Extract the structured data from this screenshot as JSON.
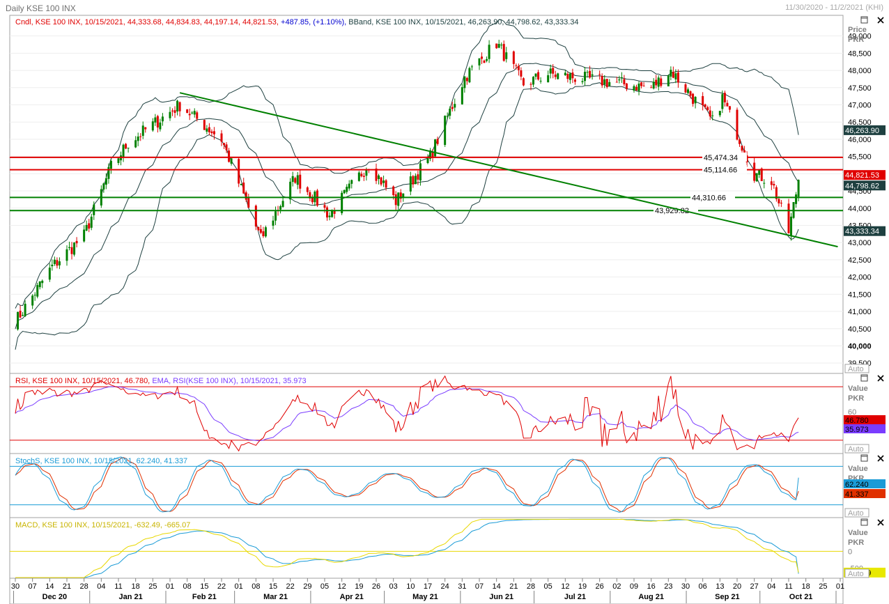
{
  "header": {
    "title": "Daily KSE 100 INX",
    "date_range": "11/30/2020 - 11/2/2021 (KHI)"
  },
  "chart_data": [
    {
      "type": "candlestick",
      "panel": "price",
      "legend_candle": "Cndl, KSE 100 INX, 10/15/2021, 44,333.68, 44,834.83, 44,197.14, 44,821.53,",
      "legend_change": "+487.85, (+1.10%),",
      "legend_bband": "BBand, KSE 100 INX, 10/15/2021, 46,263.90, 44,798.62, 43,333.34",
      "axis_title": [
        "Price",
        "PKR"
      ],
      "auto_label": "Auto",
      "ylim": [
        39200,
        49600
      ],
      "yticks": [
        "49,000",
        "48,500",
        "48,000",
        "47,500",
        "47,000",
        "46,500",
        "46,000",
        "45,500",
        "45,000",
        "44,500",
        "44,000",
        "43,500",
        "43,000",
        "42,500",
        "42,000",
        "41,500",
        "41,000",
        "40,500",
        "40,000",
        "39,500"
      ],
      "yvalues": [
        49000,
        48500,
        48000,
        47500,
        47000,
        46500,
        46000,
        45500,
        45000,
        44500,
        44000,
        43500,
        43000,
        42500,
        42000,
        41500,
        41000,
        40500,
        40000,
        39500
      ],
      "bold_ticks": [
        "45,000",
        "40,000"
      ],
      "last_candle": {
        "open": 44333.68,
        "high": 44834.83,
        "low": 44197.14,
        "close": 44821.53
      },
      "value_tags": [
        {
          "label": "46,263.90",
          "value": 46263.9,
          "bg": "#1e4040",
          "fg": "#ffffff"
        },
        {
          "label": "44,821.53",
          "value": 44821.53,
          "bg": "#e00000",
          "fg": "#ffffff"
        },
        {
          "label": "44,798.62",
          "value": 44798.62,
          "bg": "#1e4040",
          "fg": "#ffffff"
        },
        {
          "label": "43,333.34",
          "value": 43333.34,
          "bg": "#1e4040",
          "fg": "#ffffff"
        }
      ],
      "horizontal_lines": [
        {
          "label": "45,474.34",
          "value": 45474.34,
          "color": "#e00000"
        },
        {
          "label": "45,114.66",
          "value": 45114.66,
          "color": "#e00000"
        },
        {
          "label": "44,310.66",
          "value": 44310.66,
          "color": "#008000"
        },
        {
          "label": "43,929.82",
          "value": 43929.82,
          "color": "#008000"
        }
      ],
      "trendline": {
        "from": {
          "date": "2021-02-05",
          "value": 47350
        },
        "to": {
          "date": "2021-10-31",
          "value": 42880
        },
        "color": "#008000"
      },
      "key_closes": [
        {
          "date": "2020-11-30",
          "value": 40700
        },
        {
          "date": "2020-12-15",
          "value": 42300
        },
        {
          "date": "2020-12-28",
          "value": 43200
        },
        {
          "date": "2021-01-08",
          "value": 45200
        },
        {
          "date": "2021-01-15",
          "value": 45900
        },
        {
          "date": "2021-02-05",
          "value": 47000
        },
        {
          "date": "2021-02-22",
          "value": 46000
        },
        {
          "date": "2021-03-10",
          "value": 43100
        },
        {
          "date": "2021-03-24",
          "value": 44900
        },
        {
          "date": "2021-04-07",
          "value": 43800
        },
        {
          "date": "2021-04-23",
          "value": 45300
        },
        {
          "date": "2021-05-04",
          "value": 44200
        },
        {
          "date": "2021-05-18",
          "value": 45500
        },
        {
          "date": "2021-06-01",
          "value": 47800
        },
        {
          "date": "2021-06-14",
          "value": 48800
        },
        {
          "date": "2021-06-25",
          "value": 47600
        },
        {
          "date": "2021-07-05",
          "value": 47900
        },
        {
          "date": "2021-07-26",
          "value": 47700
        },
        {
          "date": "2021-08-16",
          "value": 47500
        },
        {
          "date": "2021-08-24",
          "value": 48000
        },
        {
          "date": "2021-09-10",
          "value": 46500
        },
        {
          "date": "2021-09-14",
          "value": 47200
        },
        {
          "date": "2021-09-27",
          "value": 45000
        },
        {
          "date": "2021-10-04",
          "value": 44800
        },
        {
          "date": "2021-10-11",
          "value": 43300
        },
        {
          "date": "2021-10-15",
          "value": 44821.53
        }
      ]
    },
    {
      "type": "line",
      "panel": "rsi",
      "legend_rsi": "RSI, KSE 100 INX, 10/15/2021, 46.780,",
      "legend_ema": "EMA, RSI(KSE 100 INX), 10/15/2021, 35.973",
      "axis_title": [
        "Value",
        "PKR"
      ],
      "auto_label": "Auto",
      "tick_label": "60",
      "ylim": [
        20,
        80
      ],
      "bands": [
        70,
        30
      ],
      "value_tags": [
        {
          "label": "46.780",
          "value": 46.78,
          "bg": "#e00000",
          "fg": "#000000"
        },
        {
          "label": "35.973",
          "value": 35.973,
          "bg": "#7a3cff",
          "fg": "#000000"
        }
      ],
      "last_values": {
        "rsi": 46.78,
        "ema": 35.973
      }
    },
    {
      "type": "line",
      "panel": "stochastic",
      "legend": "StochS, KSE 100 INX, 10/15/2021, 62.240, 41.337",
      "axis_title": [
        "Value",
        "PKR"
      ],
      "auto_label": "Auto",
      "ylim": [
        0,
        100
      ],
      "bands": [
        80,
        20
      ],
      "value_tags": [
        {
          "label": "62.240",
          "value": 62.24,
          "bg": "#1a9bd6",
          "fg": "#000000"
        },
        {
          "label": "41.337",
          "value": 41.337,
          "bg": "#e03000",
          "fg": "#000000"
        }
      ],
      "last_values": {
        "k": 62.24,
        "d": 41.337
      }
    },
    {
      "type": "line",
      "panel": "macd",
      "legend": "MACD, KSE 100 INX, 10/15/2021, -632.49, -665.07",
      "axis_title": [
        "Value",
        "PKR"
      ],
      "auto_label": "Auto",
      "ylim": [
        -800,
        1000
      ],
      "yticks": [
        "0",
        "-500"
      ],
      "yvalues": [
        0,
        -500
      ],
      "value_tags": [
        {
          "label": "-632.49",
          "value": -632.49,
          "bg": "#e8e800",
          "fg": "#000000"
        }
      ],
      "last_values": {
        "macd": -632.49,
        "signal": -665.07
      }
    }
  ],
  "x_axis": {
    "day_ticks": [
      {
        "date": "2020-11-30",
        "label": "30"
      },
      {
        "date": "2020-12-07",
        "label": "07"
      },
      {
        "date": "2020-12-14",
        "label": "14"
      },
      {
        "date": "2020-12-21",
        "label": "21"
      },
      {
        "date": "2020-12-28",
        "label": "28"
      },
      {
        "date": "2021-01-04",
        "label": "04"
      },
      {
        "date": "2021-01-11",
        "label": "11"
      },
      {
        "date": "2021-01-18",
        "label": "18"
      },
      {
        "date": "2021-01-25",
        "label": "25"
      },
      {
        "date": "2021-02-01",
        "label": "01"
      },
      {
        "date": "2021-02-08",
        "label": "08"
      },
      {
        "date": "2021-02-15",
        "label": "15"
      },
      {
        "date": "2021-02-22",
        "label": "22"
      },
      {
        "date": "2021-03-01",
        "label": "01"
      },
      {
        "date": "2021-03-08",
        "label": "08"
      },
      {
        "date": "2021-03-15",
        "label": "15"
      },
      {
        "date": "2021-03-22",
        "label": "22"
      },
      {
        "date": "2021-03-29",
        "label": "29"
      },
      {
        "date": "2021-04-05",
        "label": "05"
      },
      {
        "date": "2021-04-12",
        "label": "12"
      },
      {
        "date": "2021-04-19",
        "label": "19"
      },
      {
        "date": "2021-04-26",
        "label": "26"
      },
      {
        "date": "2021-05-03",
        "label": "03"
      },
      {
        "date": "2021-05-10",
        "label": "10"
      },
      {
        "date": "2021-05-17",
        "label": "17"
      },
      {
        "date": "2021-05-24",
        "label": "24"
      },
      {
        "date": "2021-05-31",
        "label": "31"
      },
      {
        "date": "2021-06-07",
        "label": "07"
      },
      {
        "date": "2021-06-14",
        "label": "14"
      },
      {
        "date": "2021-06-21",
        "label": "21"
      },
      {
        "date": "2021-06-28",
        "label": "28"
      },
      {
        "date": "2021-07-05",
        "label": "05"
      },
      {
        "date": "2021-07-12",
        "label": "12"
      },
      {
        "date": "2021-07-19",
        "label": "19"
      },
      {
        "date": "2021-07-26",
        "label": "26"
      },
      {
        "date": "2021-08-02",
        "label": "02"
      },
      {
        "date": "2021-08-09",
        "label": "09"
      },
      {
        "date": "2021-08-16",
        "label": "16"
      },
      {
        "date": "2021-08-23",
        "label": "23"
      },
      {
        "date": "2021-08-30",
        "label": "30"
      },
      {
        "date": "2021-09-06",
        "label": "06"
      },
      {
        "date": "2021-09-13",
        "label": "13"
      },
      {
        "date": "2021-09-20",
        "label": "20"
      },
      {
        "date": "2021-09-27",
        "label": "27"
      },
      {
        "date": "2021-10-04",
        "label": "04"
      },
      {
        "date": "2021-10-11",
        "label": "11"
      },
      {
        "date": "2021-10-18",
        "label": "18"
      },
      {
        "date": "2021-10-25",
        "label": "25"
      },
      {
        "date": "2021-11-01",
        "label": "01"
      }
    ],
    "month_labels": [
      {
        "date": "2020-12-16",
        "label": "Dec 20"
      },
      {
        "date": "2021-01-16",
        "label": "Jan 21"
      },
      {
        "date": "2021-02-15",
        "label": "Feb 21"
      },
      {
        "date": "2021-03-16",
        "label": "Mar 21"
      },
      {
        "date": "2021-04-16",
        "label": "Apr 21"
      },
      {
        "date": "2021-05-16",
        "label": "May 21"
      },
      {
        "date": "2021-06-16",
        "label": "Jun 21"
      },
      {
        "date": "2021-07-16",
        "label": "Jul 21"
      },
      {
        "date": "2021-08-16",
        "label": "Aug 21"
      },
      {
        "date": "2021-09-16",
        "label": "Sep 21"
      },
      {
        "date": "2021-10-16",
        "label": "Oct 21"
      }
    ],
    "month_boundaries": [
      "2020-12-01",
      "2021-01-01",
      "2021-02-01",
      "2021-03-01",
      "2021-04-01",
      "2021-05-01",
      "2021-06-01",
      "2021-07-01",
      "2021-08-01",
      "2021-09-01",
      "2021-10-01",
      "2021-11-01"
    ]
  },
  "colors": {
    "up": "#008000",
    "down": "#e00000",
    "bband": "#1e4040",
    "rsi": "#e00000",
    "rsi_ema": "#7a3cff",
    "stoch_k": "#1a9bd6",
    "stoch_d": "#e03000",
    "macd": "#e8d800",
    "macd_signal": "#1a9bd6",
    "rsi_band": "#e00000",
    "stoch_band": "#1a9bd6",
    "macd_zero": "#e8d800",
    "grid": "#c8c8c8",
    "text": "#000000"
  },
  "panel_icons": [
    "maximize-icon",
    "close-icon"
  ]
}
